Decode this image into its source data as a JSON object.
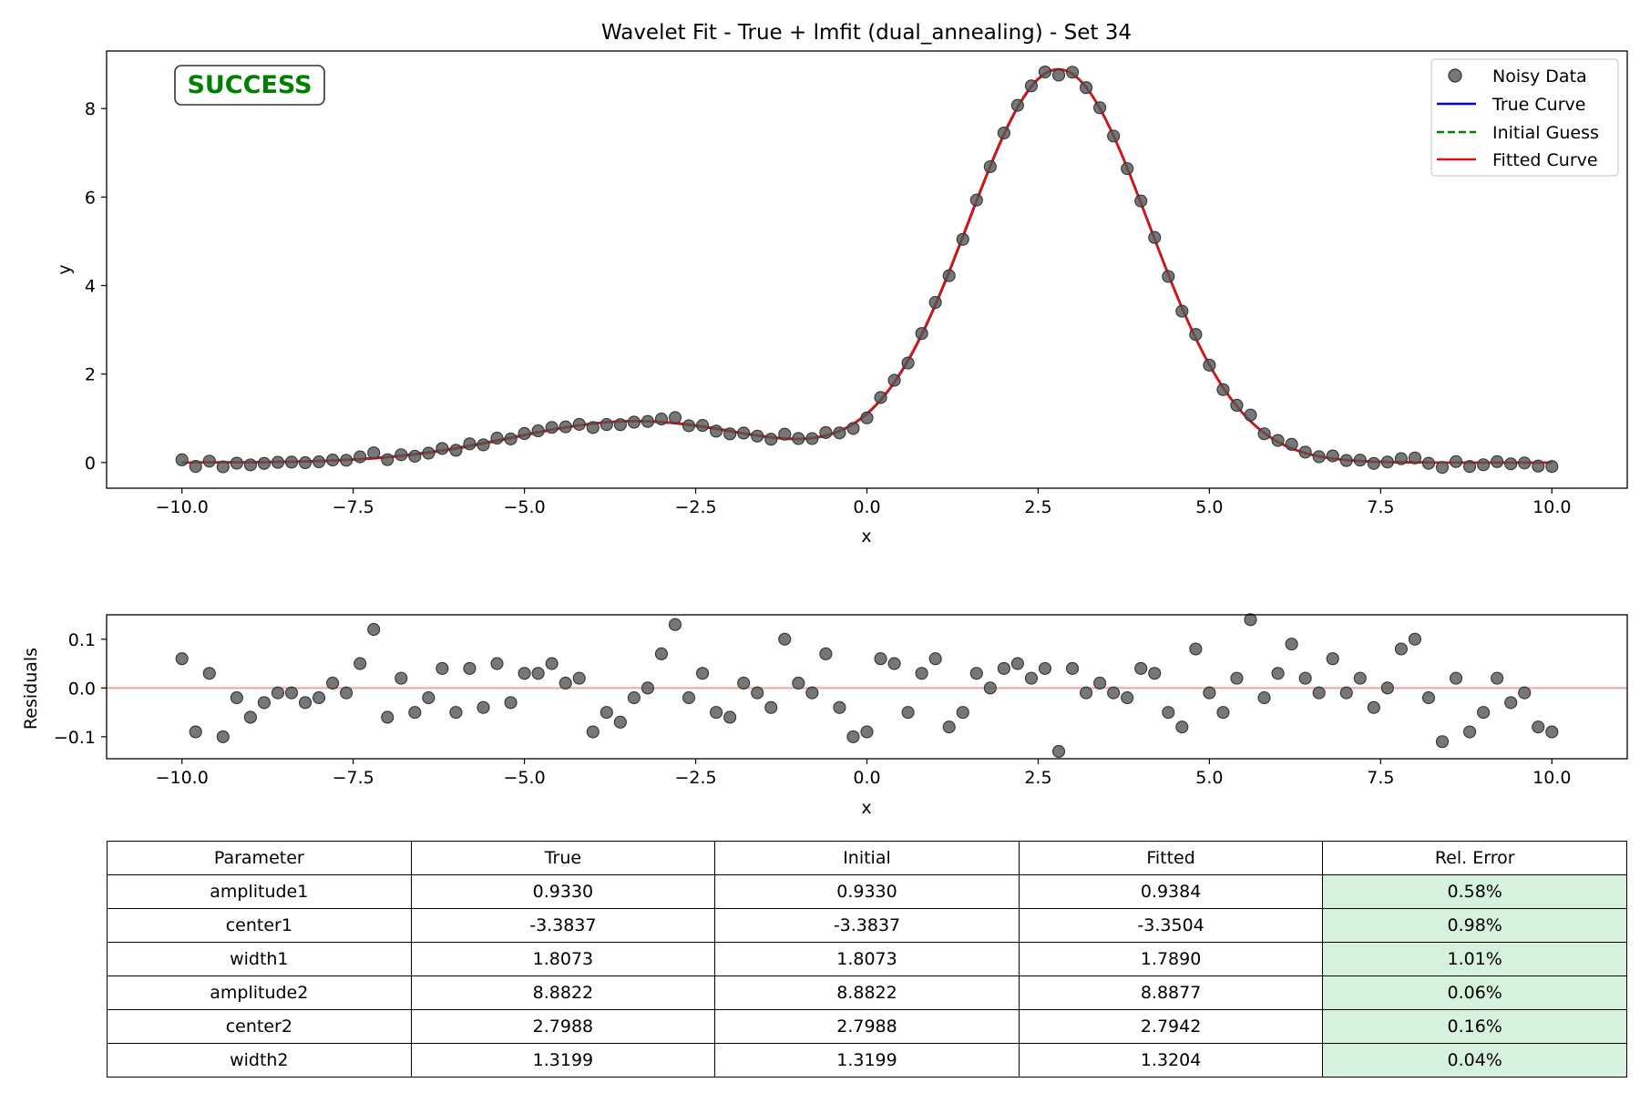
{
  "chart_data": [
    {
      "type": "line",
      "title": "Wavelet Fit - True + lmfit (dual_annealing) - Set 34",
      "xlabel": "x",
      "ylabel": "y",
      "xlim": [
        -11.1,
        11.1
      ],
      "ylim": [
        -0.58,
        9.3
      ],
      "xticks": [
        -10.0,
        -7.5,
        -5.0,
        -2.5,
        0.0,
        2.5,
        5.0,
        7.5,
        10.0
      ],
      "xtick_labels": [
        "−10.0",
        "−7.5",
        "−5.0",
        "−2.5",
        "0.0",
        "2.5",
        "5.0",
        "7.5",
        "10.0"
      ],
      "yticks": [
        0,
        2,
        4,
        6,
        8
      ],
      "ytick_labels": [
        "0",
        "2",
        "4",
        "6",
        "8"
      ],
      "grid": false,
      "legend_position": "top-right",
      "badge": {
        "text": "SUCCESS",
        "color": "#008000"
      },
      "model": "sum of two Gaussian wavelets: amplitude * exp(-((x-center)/width)^2 / 2)",
      "series": [
        {
          "name": "Noisy Data",
          "kind": "scatter",
          "color": "#555555",
          "x_range": [
            -10,
            10
          ],
          "n_points": 101,
          "residuals": [
            0.06,
            -0.09,
            0.03,
            -0.1,
            -0.02,
            -0.06,
            -0.03,
            -0.01,
            -0.01,
            -0.03,
            -0.02,
            0.01,
            -0.01,
            0.05,
            0.12,
            -0.06,
            0.02,
            -0.05,
            -0.02,
            0.04,
            -0.05,
            0.04,
            -0.04,
            0.05,
            -0.03,
            0.03,
            0.03,
            0.05,
            0.01,
            0.02,
            -0.09,
            -0.05,
            -0.07,
            -0.02,
            0.0,
            0.07,
            0.13,
            -0.02,
            0.03,
            -0.05,
            -0.06,
            0.01,
            -0.01,
            -0.04,
            0.1,
            0.01,
            -0.01,
            0.07,
            -0.04,
            -0.1,
            -0.09,
            0.06,
            0.05,
            -0.05,
            0.03,
            0.06,
            -0.08,
            -0.05,
            0.03,
            0.0,
            0.04,
            0.05,
            0.02,
            0.04,
            -0.13,
            0.04,
            -0.01,
            0.01,
            -0.01,
            -0.02,
            0.04,
            0.03,
            -0.05,
            -0.08,
            0.08,
            -0.01,
            -0.05,
            0.02,
            0.14,
            -0.02,
            0.03,
            0.09,
            0.02,
            -0.01,
            0.06,
            -0.01,
            0.02,
            -0.04,
            0.0,
            0.08,
            0.1,
            -0.02,
            -0.11,
            0.02,
            -0.09,
            -0.05,
            0.02,
            -0.03,
            -0.01,
            -0.08,
            -0.09
          ]
        },
        {
          "name": "True Curve",
          "kind": "line",
          "color": "#0000ff",
          "line_style": "solid",
          "amplitude1": 0.933,
          "center1": -3.3837,
          "width1": 1.8073,
          "amplitude2": 8.8822,
          "center2": 2.7988,
          "width2": 1.3199
        },
        {
          "name": "Initial Guess",
          "kind": "line",
          "color": "#008000",
          "line_style": "dashed",
          "amplitude1": 0.933,
          "center1": -3.3837,
          "width1": 1.8073,
          "amplitude2": 8.8822,
          "center2": 2.7988,
          "width2": 1.3199
        },
        {
          "name": "Fitted Curve",
          "kind": "line",
          "color": "#e01010",
          "line_style": "solid",
          "amplitude1": 0.9384,
          "center1": -3.3504,
          "width1": 1.789,
          "amplitude2": 8.8877,
          "center2": 2.7942,
          "width2": 1.3204
        }
      ]
    },
    {
      "type": "scatter",
      "title": "",
      "xlabel": "x",
      "ylabel": "Residuals",
      "xlim": [
        -11.1,
        11.1
      ],
      "ylim": [
        -0.145,
        0.15
      ],
      "xticks": [
        -10.0,
        -7.5,
        -5.0,
        -2.5,
        0.0,
        2.5,
        5.0,
        7.5,
        10.0
      ],
      "xtick_labels": [
        "−10.0",
        "−7.5",
        "−5.0",
        "−2.5",
        "0.0",
        "2.5",
        "5.0",
        "7.5",
        "10.0"
      ],
      "yticks": [
        0.1,
        0.0,
        -0.1
      ],
      "ytick_labels": [
        "0.1",
        "0.0",
        "−0.1"
      ],
      "zero_line_color": "#f4a0a0",
      "grid": false
    }
  ],
  "table": {
    "headers": [
      "Parameter",
      "True",
      "Initial",
      "Fitted",
      "Rel. Error"
    ],
    "rows": [
      [
        "amplitude1",
        "0.9330",
        "0.9330",
        "0.9384",
        "0.58%"
      ],
      [
        "center1",
        "-3.3837",
        "-3.3837",
        "-3.3504",
        "0.98%"
      ],
      [
        "width1",
        "1.8073",
        "1.8073",
        "1.7890",
        "1.01%"
      ],
      [
        "amplitude2",
        "8.8822",
        "8.8822",
        "8.8877",
        "0.06%"
      ],
      [
        "center2",
        "2.7988",
        "2.7988",
        "2.7942",
        "0.16%"
      ],
      [
        "width2",
        "1.3199",
        "1.3199",
        "1.3204",
        "0.04%"
      ]
    ],
    "error_cell_color": "#d6f2dc"
  }
}
